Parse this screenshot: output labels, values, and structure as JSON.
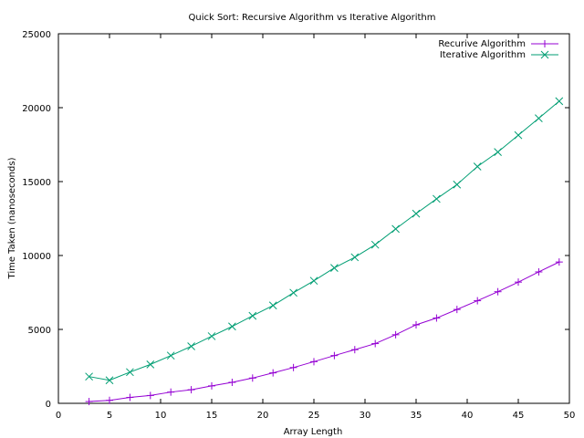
{
  "chart_data": {
    "type": "line",
    "title": "Quick Sort: Recursive Algorithm vs Iterative Algorithm",
    "xlabel": "Array Length",
    "ylabel": "Time Taken (nanoseconds)",
    "xlim": [
      0,
      50
    ],
    "ylim": [
      0,
      25000
    ],
    "xticks": [
      0,
      5,
      10,
      15,
      20,
      25,
      30,
      35,
      40,
      45,
      50
    ],
    "yticks": [
      0,
      5000,
      10000,
      15000,
      20000,
      25000
    ],
    "grid": false,
    "legend_position": "top-right",
    "x": [
      3,
      5,
      7,
      9,
      11,
      13,
      15,
      17,
      19,
      21,
      23,
      25,
      27,
      29,
      31,
      33,
      35,
      37,
      39,
      41,
      43,
      45,
      47,
      49
    ],
    "series": [
      {
        "name": "Recurive Algorithm",
        "color": "#9400d3",
        "marker": "plus",
        "values": [
          120,
          200,
          400,
          530,
          760,
          920,
          1180,
          1420,
          1710,
          2060,
          2420,
          2820,
          3230,
          3630,
          4040,
          4640,
          5310,
          5770,
          6350,
          6940,
          7550,
          8200,
          8890,
          9560
        ]
      },
      {
        "name": "Iterative Algorithm",
        "color": "#009e73",
        "marker": "cross",
        "values": [
          1810,
          1560,
          2110,
          2630,
          3230,
          3860,
          4540,
          5200,
          5920,
          6620,
          7480,
          8290,
          9160,
          9880,
          10730,
          11800,
          12830,
          13830,
          14800,
          16020,
          17000,
          18140,
          19280,
          20440
        ]
      }
    ]
  }
}
